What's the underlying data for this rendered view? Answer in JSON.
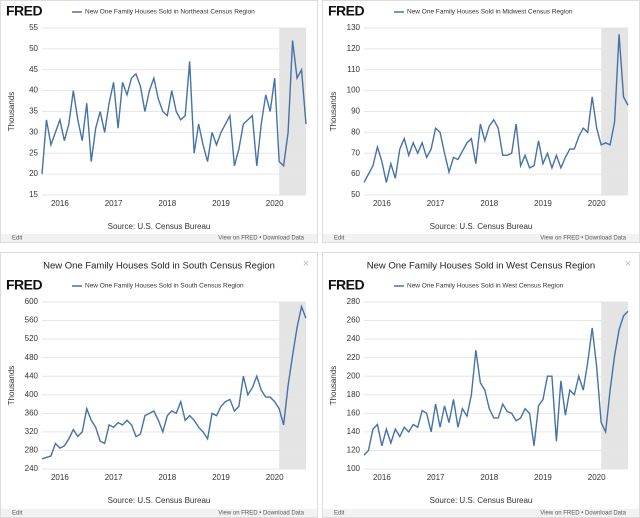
{
  "chart_data": [
    {
      "type": "line",
      "logo": "FRED",
      "series": [
        {
          "name": "New One Family Houses Sold in Northeast Census Region",
          "color": "#4572a7",
          "values": [
            20,
            33,
            27,
            30,
            33,
            28,
            32,
            40,
            33,
            28,
            37,
            23,
            31,
            35,
            30,
            37,
            42,
            31,
            42,
            39,
            43,
            44,
            41,
            35,
            40,
            43,
            38,
            35,
            34,
            40,
            35,
            33,
            34,
            47,
            25,
            32,
            27,
            23,
            30,
            27,
            30,
            32,
            34,
            22,
            26,
            32,
            33,
            34,
            22,
            32,
            39,
            35,
            43,
            23,
            22,
            30,
            52,
            43,
            45,
            32
          ]
        }
      ],
      "categories": [
        null,
        null,
        null,
        null,
        "2016",
        null,
        null,
        null,
        null,
        null,
        null,
        null,
        null,
        null,
        null,
        null,
        "2017",
        null,
        null,
        null,
        null,
        null,
        null,
        null,
        null,
        null,
        null,
        null,
        "2018",
        null,
        null,
        null,
        null,
        null,
        null,
        null,
        null,
        null,
        null,
        null,
        "2019",
        null,
        null,
        null,
        null,
        null,
        null,
        null,
        null,
        null,
        null,
        null,
        "2020",
        null,
        null,
        null,
        null,
        null,
        null,
        null
      ],
      "ylim": [
        15,
        55
      ],
      "yticks": [
        15,
        20,
        25,
        30,
        35,
        40,
        45,
        50,
        55
      ],
      "grid": true,
      "ylabel": "Thousands",
      "shading": {
        "start": 53,
        "end": 59
      },
      "source": "Source: U.S. Census Bureau",
      "footer_left": "Edit",
      "footer_right": "View on FRED • Download Data"
    },
    {
      "type": "line",
      "logo": "FRED",
      "series": [
        {
          "name": "New One Family Houses Sold in Midwest Census Region",
          "color": "#4572a7",
          "values": [
            56,
            60,
            64,
            73,
            66,
            56,
            65,
            58,
            72,
            77,
            69,
            75,
            70,
            75,
            68,
            72,
            82,
            80,
            70,
            61,
            68,
            67,
            71,
            75,
            77,
            65,
            84,
            76,
            83,
            86,
            82,
            69,
            69,
            70,
            84,
            64,
            69,
            63,
            64,
            76,
            65,
            70,
            63,
            69,
            63,
            68,
            72,
            72,
            78,
            82,
            80,
            97,
            82,
            74,
            75,
            74,
            85,
            127,
            97,
            93
          ]
        }
      ],
      "categories": [
        null,
        null,
        null,
        null,
        "2016",
        null,
        null,
        null,
        null,
        null,
        null,
        null,
        null,
        null,
        null,
        null,
        "2017",
        null,
        null,
        null,
        null,
        null,
        null,
        null,
        null,
        null,
        null,
        null,
        "2018",
        null,
        null,
        null,
        null,
        null,
        null,
        null,
        null,
        null,
        null,
        null,
        "2019",
        null,
        null,
        null,
        null,
        null,
        null,
        null,
        null,
        null,
        null,
        null,
        "2020",
        null,
        null,
        null,
        null,
        null,
        null,
        null
      ],
      "ylim": [
        50,
        130
      ],
      "yticks": [
        50,
        60,
        70,
        80,
        90,
        100,
        110,
        120,
        130
      ],
      "grid": true,
      "ylabel": "Thousands",
      "shading": {
        "start": 53,
        "end": 59
      },
      "source": "Source: U.S. Census Bureau",
      "footer_left": "Edit",
      "footer_right": "View on FRED • Download Data"
    },
    {
      "type": "line",
      "title": "New One Family Houses Sold in South Census Region",
      "logo": "FRED",
      "series": [
        {
          "name": "New One Family Houses Sold in South Census Region",
          "color": "#4572a7",
          "values": [
            262,
            265,
            268,
            295,
            285,
            290,
            305,
            325,
            310,
            320,
            370,
            345,
            330,
            300,
            295,
            335,
            330,
            340,
            335,
            345,
            335,
            310,
            315,
            355,
            360,
            365,
            345,
            320,
            355,
            365,
            360,
            385,
            345,
            355,
            345,
            330,
            320,
            305,
            360,
            355,
            375,
            385,
            390,
            365,
            375,
            440,
            400,
            415,
            440,
            410,
            395,
            395,
            385,
            370,
            335,
            420,
            485,
            545,
            590,
            565
          ]
        }
      ],
      "categories": [
        null,
        null,
        null,
        null,
        "2016",
        null,
        null,
        null,
        null,
        null,
        null,
        null,
        null,
        null,
        null,
        null,
        "2017",
        null,
        null,
        null,
        null,
        null,
        null,
        null,
        null,
        null,
        null,
        null,
        "2018",
        null,
        null,
        null,
        null,
        null,
        null,
        null,
        null,
        null,
        null,
        null,
        "2019",
        null,
        null,
        null,
        null,
        null,
        null,
        null,
        null,
        null,
        null,
        null,
        "2020",
        null,
        null,
        null,
        null,
        null,
        null,
        null
      ],
      "ylim": [
        240,
        600
      ],
      "yticks": [
        240,
        280,
        320,
        360,
        400,
        440,
        480,
        520,
        560,
        600
      ],
      "grid": true,
      "ylabel": "Thousands",
      "shading": {
        "start": 53,
        "end": 59
      },
      "source": "Source: U.S. Census Bureau",
      "footer_left": "Edit",
      "footer_right": "View on FRED • Download Data"
    },
    {
      "type": "line",
      "title": "New One Family Houses Sold in West Census Region",
      "logo": "FRED",
      "series": [
        {
          "name": "New One Family Houses Sold in West Census Region",
          "color": "#4572a7",
          "values": [
            115,
            120,
            143,
            148,
            125,
            143,
            128,
            143,
            135,
            145,
            140,
            148,
            145,
            163,
            160,
            140,
            170,
            145,
            168,
            150,
            175,
            145,
            165,
            157,
            180,
            228,
            193,
            185,
            165,
            155,
            155,
            170,
            162,
            160,
            152,
            155,
            165,
            160,
            125,
            168,
            175,
            200,
            200,
            130,
            195,
            158,
            185,
            180,
            200,
            185,
            215,
            252,
            210,
            150,
            140,
            185,
            222,
            250,
            265,
            270
          ]
        }
      ],
      "categories": [
        null,
        null,
        null,
        null,
        "2016",
        null,
        null,
        null,
        null,
        null,
        null,
        null,
        null,
        null,
        null,
        null,
        "2017",
        null,
        null,
        null,
        null,
        null,
        null,
        null,
        null,
        null,
        null,
        null,
        "2018",
        null,
        null,
        null,
        null,
        null,
        null,
        null,
        null,
        null,
        null,
        null,
        "2019",
        null,
        null,
        null,
        null,
        null,
        null,
        null,
        null,
        null,
        null,
        null,
        "2020",
        null,
        null,
        null,
        null,
        null,
        null,
        null
      ],
      "ylim": [
        100,
        280
      ],
      "yticks": [
        100,
        120,
        140,
        160,
        180,
        200,
        220,
        240,
        260,
        280
      ],
      "grid": true,
      "ylabel": "Thousands",
      "shading": {
        "start": 53,
        "end": 59
      },
      "source": "Source: U.S. Census Bureau",
      "footer_left": "Edit",
      "footer_right": "View on FRED • Download Data"
    }
  ]
}
